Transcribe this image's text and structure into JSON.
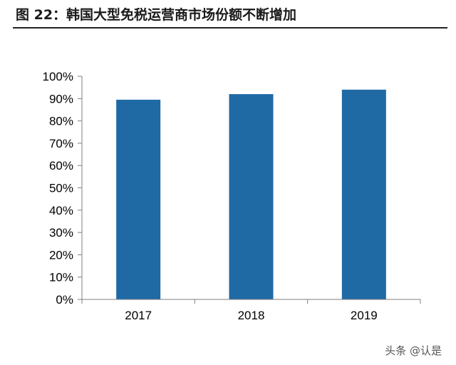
{
  "figure": {
    "title": "图 22：韩国大型免税运营商市场份额不断增加"
  },
  "watermark": "头条 @认是",
  "chart_data": {
    "type": "bar",
    "title": "",
    "xlabel": "",
    "ylabel": "",
    "categories": [
      "2017",
      "2018",
      "2019"
    ],
    "values": [
      89.5,
      92,
      94
    ],
    "ylim": [
      0,
      100
    ],
    "yticks": [
      0,
      10,
      20,
      30,
      40,
      50,
      60,
      70,
      80,
      90,
      100
    ],
    "yticklabels": [
      "0%",
      "10%",
      "20%",
      "30%",
      "40%",
      "50%",
      "60%",
      "70%",
      "80%",
      "90%",
      "100%"
    ],
    "grid": false,
    "legend": "none",
    "bar_color": "#1f6aa5"
  }
}
